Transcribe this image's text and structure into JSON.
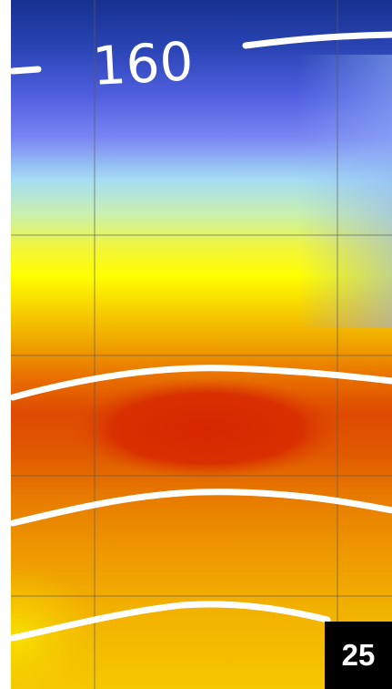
{
  "page_number": "25",
  "colors": {
    "band_top": "#16318f",
    "band_blue": "#5c6cf0",
    "band_cyan": "#aee8f6",
    "band_yellow": "#ffff00",
    "band_orange": "#f0a800",
    "band_red": "#d62800",
    "contour_line": "#ffffff",
    "grid_line": "#5a5a5a",
    "badge_background": "#000000",
    "badge_text": "#ffffff"
  },
  "chart_data": {
    "type": "heatmap",
    "title": "",
    "xlabel": "",
    "ylabel": "",
    "grid": true,
    "colormap": [
      "#16318f",
      "#5c6cf0",
      "#aee8f6",
      "#ffff00",
      "#f0a800",
      "#d62800"
    ],
    "contours": [
      {
        "label": "160"
      },
      {
        "label": ""
      },
      {
        "label": ""
      },
      {
        "label": ""
      }
    ]
  }
}
